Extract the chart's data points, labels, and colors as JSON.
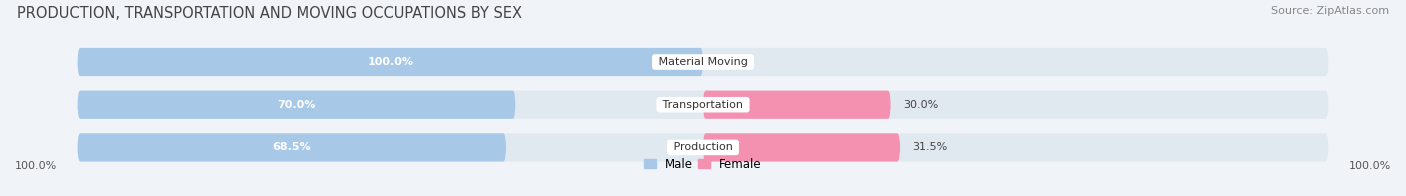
{
  "title": "PRODUCTION, TRANSPORTATION AND MOVING OCCUPATIONS BY SEX",
  "source": "Source: ZipAtlas.com",
  "categories": [
    "Material Moving",
    "Transportation",
    "Production"
  ],
  "male_values": [
    100.0,
    70.0,
    68.5
  ],
  "female_values": [
    0.0,
    30.0,
    31.5
  ],
  "male_color": "#a8c8e8",
  "female_color": "#f490b0",
  "bg_color": "#e0e8f0",
  "label_color_male": "white",
  "category_label_color": "#333333",
  "title_fontsize": 10.5,
  "source_fontsize": 8,
  "bar_label_fontsize": 8,
  "cat_label_fontsize": 8,
  "legend_fontsize": 8.5,
  "axis_label_fontsize": 8,
  "fig_bg": "#f0f4f8",
  "bar_height": 0.62,
  "left_axis_label": "100.0%",
  "right_axis_label": "100.0%"
}
